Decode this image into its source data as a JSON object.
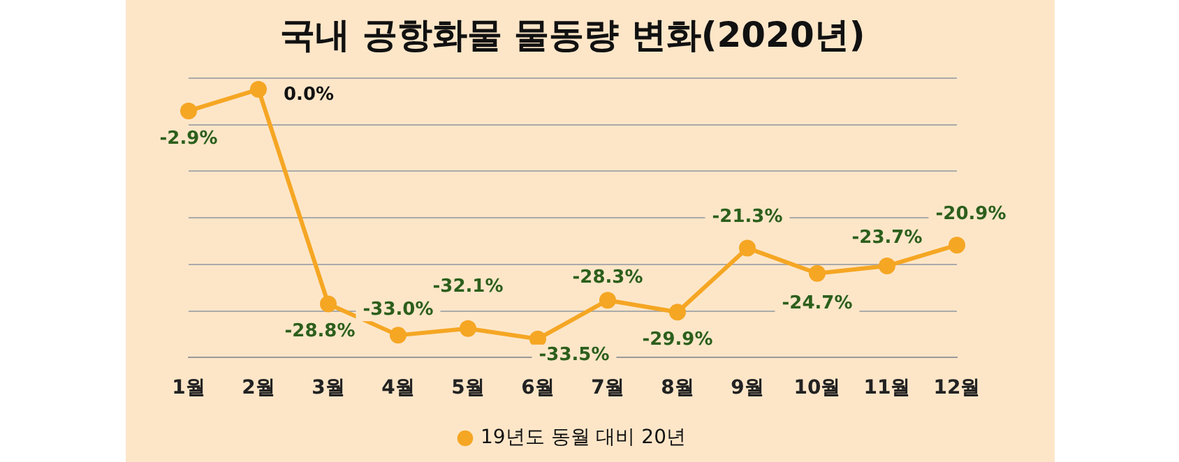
{
  "chart_data": {
    "type": "line",
    "title": "국내 공항화물 물동량 변화(2020년)",
    "categories": [
      "1월",
      "2월",
      "3월",
      "4월",
      "5월",
      "6월",
      "7월",
      "8월",
      "9월",
      "10월",
      "11월",
      "12월"
    ],
    "series": [
      {
        "name": "19년도 동월 대비 20년",
        "color": "#f5a623",
        "values": [
          -2.9,
          0.0,
          -28.8,
          -33.0,
          -32.1,
          -33.5,
          -28.3,
          -29.9,
          -21.3,
          -24.7,
          -23.7,
          -20.9
        ],
        "value_labels": [
          "-2.9%",
          "0.0%",
          "-28.8%",
          "-33.0%",
          "-32.1%",
          "-33.5%",
          "-28.3%",
          "-29.9%",
          "-21.3%",
          "-24.7%",
          "-23.7%",
          "-20.9%"
        ]
      }
    ],
    "ylim": [
      -36,
      1.5
    ],
    "yticks": [
      {
        "value": 1.5,
        "label": null
      },
      {
        "value": -4.75,
        "label": null
      },
      {
        "value": -11,
        "label": null
      },
      {
        "value": -17.25,
        "label": null
      },
      {
        "value": -23.5,
        "label": null
      },
      {
        "value": -29.75,
        "label": null
      },
      {
        "value": -36,
        "label": null
      }
    ],
    "tick_labels": "x",
    "grid": "y",
    "legend": "bottom",
    "marker": "circle",
    "line_style": "solid"
  }
}
